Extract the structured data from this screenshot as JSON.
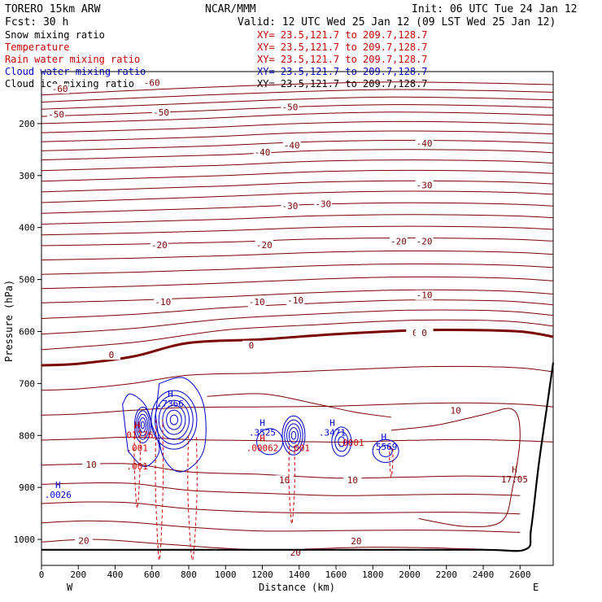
{
  "header": {
    "model": "TORERO  15km ARW",
    "center": "NCAR/MMM",
    "init": "Init: 06 UTC Tue 24 Jan 12",
    "fcst": "Fcst:   30 h",
    "valid": "Valid: 12 UTC Wed 25 Jan 12 (09 LST Wed 25 Jan 12)"
  },
  "fields": [
    {
      "name": "Snow mixing ratio",
      "xy": "XY=  23.5,121.7 to 209.7,128.7",
      "color": "#000000"
    },
    {
      "name": "Temperature",
      "xy": "XY=  23.5,121.7 to 209.7,128.7",
      "color": "#cc0000"
    },
    {
      "name": "Rain water mixing ratio",
      "xy": "XY=  23.5,121.7 to 209.7,128.7",
      "color": "#cc0000"
    },
    {
      "name": "Cloud water mixing ratio",
      "xy": "XY=  23.5,121.7 to 209.7,128.7",
      "color": "#0000cc"
    },
    {
      "name": "Cloud ice mixing ratio",
      "xy": "XY=  23.5,121.7 to 209.7,128.7",
      "color": "#000000"
    }
  ],
  "chart_data": {
    "type": "cross-section contour",
    "xlabel": "Distance (km)",
    "ylabel": "Pressure (hPa)",
    "xlim": [
      0,
      2780
    ],
    "ylim": [
      1050,
      100
    ],
    "x_ticks": [
      0,
      200,
      400,
      600,
      800,
      1000,
      1200,
      1400,
      1600,
      1800,
      2000,
      2200,
      2400,
      2600
    ],
    "y_ticks": [
      200,
      300,
      400,
      500,
      600,
      700,
      800,
      900,
      1000
    ],
    "x_ends": {
      "left": "W",
      "right": "E"
    },
    "colors": {
      "temperature": "#7a0000",
      "cloud_water": "#0000cc",
      "rain": "#cc0000",
      "terrain": "#000000"
    },
    "temperature_isotherms": [
      {
        "label": "-60",
        "level": -60,
        "points": [
          [
            0,
            145
          ],
          [
            400,
            138
          ],
          [
            900,
            130
          ],
          [
            1400,
            124
          ],
          [
            1900,
            120
          ],
          [
            2400,
            122
          ],
          [
            2780,
            125
          ]
        ],
        "labels_at": [
          [
            100,
            133
          ],
          [
            600,
            121
          ]
        ]
      },
      {
        "label": "-50",
        "level": -50,
        "points": [
          [
            0,
            200
          ],
          [
            400,
            196
          ],
          [
            900,
            190
          ],
          [
            1400,
            182
          ],
          [
            1900,
            178
          ],
          [
            2400,
            180
          ],
          [
            2780,
            184
          ]
        ],
        "labels_at": [
          [
            80,
            182
          ],
          [
            650,
            178
          ],
          [
            1350,
            168
          ]
        ]
      },
      {
        "label": "-40",
        "level": -40,
        "points": [
          [
            0,
            270
          ],
          [
            500,
            265
          ],
          [
            1000,
            260
          ],
          [
            1500,
            252
          ],
          [
            2000,
            250
          ],
          [
            2500,
            252
          ],
          [
            2780,
            256
          ]
        ],
        "labels_at": [
          [
            1200,
            255
          ],
          [
            1360,
            242
          ],
          [
            2080,
            238
          ]
        ]
      },
      {
        "label": "-30",
        "level": -30,
        "points": [
          [
            0,
            352
          ],
          [
            500,
            346
          ],
          [
            1000,
            340
          ],
          [
            1500,
            333
          ],
          [
            2000,
            330
          ],
          [
            2500,
            332
          ],
          [
            2780,
            336
          ]
        ],
        "labels_at": [
          [
            1350,
            358
          ],
          [
            1530,
            354
          ],
          [
            2080,
            318
          ]
        ]
      },
      {
        "label": "-20",
        "level": -20,
        "points": [
          [
            0,
            435
          ],
          [
            500,
            432
          ],
          [
            1000,
            428
          ],
          [
            1500,
            422
          ],
          [
            2000,
            420
          ],
          [
            2500,
            422
          ],
          [
            2780,
            426
          ]
        ],
        "labels_at": [
          [
            640,
            433
          ],
          [
            1210,
            433
          ],
          [
            1940,
            426
          ],
          [
            2080,
            426
          ]
        ]
      },
      {
        "label": "-10",
        "level": -10,
        "points": [
          [
            0,
            545
          ],
          [
            500,
            540
          ],
          [
            1000,
            533
          ],
          [
            1500,
            525
          ],
          [
            2000,
            520
          ],
          [
            2500,
            522
          ],
          [
            2780,
            528
          ]
        ],
        "labels_at": [
          [
            660,
            543
          ],
          [
            1170,
            543
          ],
          [
            1380,
            540
          ],
          [
            2080,
            530
          ]
        ]
      },
      {
        "label": "0",
        "level": 0,
        "points": [
          [
            0,
            665
          ],
          [
            200,
            662
          ],
          [
            500,
            648
          ],
          [
            800,
            622
          ],
          [
            1200,
            615
          ],
          [
            1600,
            605
          ],
          [
            2000,
            598
          ],
          [
            2300,
            597
          ],
          [
            2600,
            600
          ],
          [
            2780,
            610
          ]
        ],
        "labels_at": [
          [
            380,
            645
          ],
          [
            1140,
            627
          ],
          [
            2030,
            602
          ],
          [
            2080,
            602
          ]
        ]
      },
      {
        "label": "10",
        "level": 10,
        "points": [
          [
            0,
            857
          ],
          [
            250,
            855
          ],
          [
            500,
            855
          ],
          [
            800,
            870
          ],
          [
            1200,
            875
          ],
          [
            1600,
            882
          ],
          [
            2000,
            880
          ],
          [
            2300,
            878
          ],
          [
            2600,
            880
          ]
        ],
        "labels_at": [
          [
            270,
            856
          ],
          [
            1320,
            886
          ],
          [
            1690,
            886
          ],
          [
            2250,
            752
          ]
        ]
      },
      {
        "label": "20",
        "level": 20,
        "points": [
          [
            0,
            1005
          ],
          [
            300,
            1000
          ],
          [
            700,
            1010
          ],
          [
            1200,
            1020
          ],
          [
            1800,
            1015
          ],
          [
            2300,
            1018
          ],
          [
            2600,
            1022
          ]
        ],
        "labels_at": [
          [
            230,
            1002
          ],
          [
            1380,
            1025
          ],
          [
            1710,
            1003
          ]
        ]
      }
    ],
    "temperature_labels": [
      "-60",
      "-60",
      "-50",
      "-50",
      "-50",
      "-40",
      "-40",
      "-40",
      "-30",
      "-30",
      "-30",
      "-20",
      "-20",
      "-20",
      "-20",
      "-10",
      "-10",
      "-10",
      "-10",
      "0",
      "0",
      "0",
      "0",
      "10",
      "10",
      "10",
      "10",
      "20",
      "20",
      "20"
    ],
    "cloud_water_extrema": [
      {
        "type": "H",
        "value": ".7366",
        "x": 700,
        "p": 745
      },
      {
        "type": "H",
        "value": ".3525",
        "x": 1200,
        "p": 800
      },
      {
        "type": "H",
        "value": ".3471",
        "x": 1580,
        "p": 800
      },
      {
        "type": "H",
        "value": ".5569",
        "x": 1860,
        "p": 828
      },
      {
        "type": "H",
        "value": ".0026",
        "x": 90,
        "p": 920
      }
    ],
    "rain_extrema": [
      {
        "type": "H",
        "value": ".01776",
        "x": 520,
        "p": 805
      },
      {
        "type": "",
        "value": ".001",
        "x": 520,
        "p": 830
      },
      {
        "type": "",
        "value": ".001",
        "x": 520,
        "p": 865
      },
      {
        "type": "H",
        "value": ".00062",
        "x": 1200,
        "p": 830
      },
      {
        "type": "",
        "value": ".001",
        "x": 1400,
        "p": 830
      },
      {
        "type": "",
        "value": ".0001",
        "x": 1680,
        "p": 820
      }
    ],
    "surface_high": {
      "type": "H",
      "value": "17.05",
      "x": 2570,
      "p": 890
    }
  }
}
